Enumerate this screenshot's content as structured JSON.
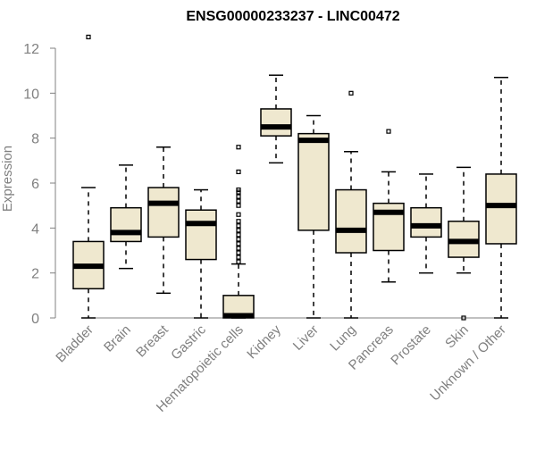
{
  "chart_data": {
    "type": "boxplot",
    "title": "ENSG00000233237 - LINC00472",
    "xlabel": "",
    "ylabel": "Expression",
    "ylim": [
      0,
      12
    ],
    "yticks": [
      0,
      2,
      4,
      6,
      8,
      10,
      12
    ],
    "categories": [
      "Bladder",
      "Brain",
      "Breast",
      "Gastric",
      "Hematopoietic cells",
      "Kidney",
      "Liver",
      "Lung",
      "Pancreas",
      "Prostate",
      "Skin",
      "Unknown / Other"
    ],
    "boxes": [
      {
        "name": "Bladder",
        "whisker_low": 0.0,
        "q1": 1.3,
        "median": 2.3,
        "q3": 3.4,
        "whisker_high": 5.8,
        "outliers": [
          12.5
        ]
      },
      {
        "name": "Brain",
        "whisker_low": 2.2,
        "q1": 3.4,
        "median": 3.8,
        "q3": 4.9,
        "whisker_high": 6.8,
        "outliers": []
      },
      {
        "name": "Breast",
        "whisker_low": 1.1,
        "q1": 3.6,
        "median": 5.1,
        "q3": 5.8,
        "whisker_high": 7.6,
        "outliers": []
      },
      {
        "name": "Gastric",
        "whisker_low": 0.0,
        "q1": 2.6,
        "median": 4.2,
        "q3": 4.8,
        "whisker_high": 5.7,
        "outliers": []
      },
      {
        "name": "Hematopoietic cells",
        "whisker_low": 0.0,
        "q1": 0.0,
        "median": 0.1,
        "q3": 1.0,
        "whisker_high": 2.4,
        "outliers": [
          2.5,
          2.7,
          2.9,
          3.1,
          3.3,
          3.5,
          3.7,
          3.9,
          4.1,
          4.3,
          4.6,
          5.0,
          5.2,
          5.4,
          5.6,
          5.7,
          6.5,
          7.6
        ]
      },
      {
        "name": "Kidney",
        "whisker_low": 6.9,
        "q1": 8.1,
        "median": 8.5,
        "q3": 9.3,
        "whisker_high": 10.8,
        "outliers": []
      },
      {
        "name": "Liver",
        "whisker_low": 0.0,
        "q1": 3.9,
        "median": 7.9,
        "q3": 8.2,
        "whisker_high": 9.0,
        "outliers": []
      },
      {
        "name": "Lung",
        "whisker_low": 0.0,
        "q1": 2.9,
        "median": 3.9,
        "q3": 5.7,
        "whisker_high": 7.4,
        "outliers": [
          10.0
        ]
      },
      {
        "name": "Pancreas",
        "whisker_low": 1.6,
        "q1": 3.0,
        "median": 4.7,
        "q3": 5.1,
        "whisker_high": 6.5,
        "outliers": [
          8.3
        ]
      },
      {
        "name": "Prostate",
        "whisker_low": 2.0,
        "q1": 3.6,
        "median": 4.1,
        "q3": 4.9,
        "whisker_high": 6.4,
        "outliers": []
      },
      {
        "name": "Skin",
        "whisker_low": 2.0,
        "q1": 2.7,
        "median": 3.4,
        "q3": 4.3,
        "whisker_high": 6.7,
        "outliers": [
          0.0
        ]
      },
      {
        "name": "Unknown / Other",
        "whisker_low": 0.0,
        "q1": 3.3,
        "median": 5.0,
        "q3": 6.4,
        "whisker_high": 10.7,
        "outliers": []
      }
    ],
    "colors": {
      "box_fill": "#efe8cf",
      "box_stroke": "#000000",
      "axis": "#808080",
      "label": "#808080"
    },
    "grid": false,
    "legend": "none"
  }
}
